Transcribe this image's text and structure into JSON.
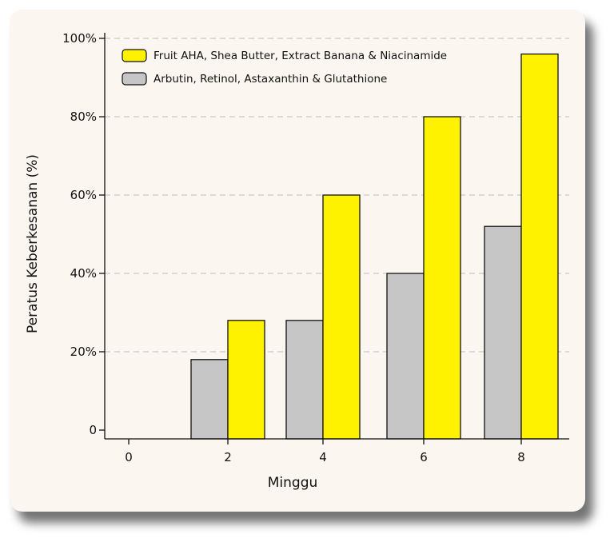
{
  "chart_data": {
    "type": "bar",
    "categories": [
      "0",
      "2",
      "4",
      "6",
      "8"
    ],
    "series": [
      {
        "name": "Arbutin, Retinol, Astaxanthin & Glutathione",
        "color": "#c6c6c6",
        "values": [
          0,
          18,
          28,
          40,
          52
        ]
      },
      {
        "name": "Fruit AHA, Shea Butter, Extract Banana & Niacinamide",
        "color": "#fff200",
        "values": [
          0,
          28,
          60,
          80,
          96
        ]
      }
    ],
    "legend_order": [
      1,
      0
    ],
    "xlabel": "Minggu",
    "ylabel": "Peratus Keberkesanan (%)",
    "ylim": [
      0,
      100
    ],
    "yticks": [
      0,
      20,
      40,
      60,
      80,
      100
    ],
    "ytick_labels": [
      "0",
      "20%",
      "40%",
      "60%",
      "80%",
      "100%"
    ],
    "grid": "horizontal-dashed",
    "legend_position": "top-left"
  }
}
